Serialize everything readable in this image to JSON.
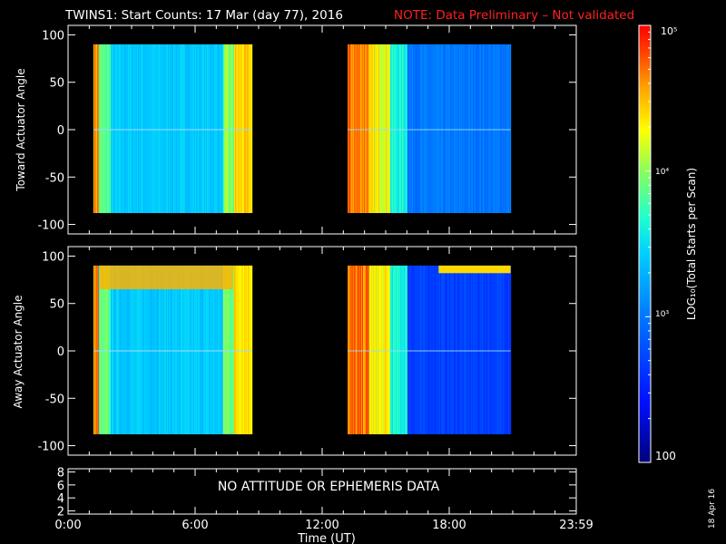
{
  "header": {
    "title": "TWINS1: Start Counts: 17 Mar (day  77), 2016",
    "note": "NOTE: Data Preliminary – Not validated"
  },
  "colors": {
    "background": "#000000",
    "foreground": "#ffffff",
    "note": "#ff2020"
  },
  "chart_data": [
    {
      "type": "heatmap",
      "panel": "toward",
      "ylabel": "Toward Actuator Angle",
      "ylim": [
        -110,
        110
      ],
      "yticks": [
        100,
        50,
        0,
        -50,
        -100
      ],
      "ytick_labels": [
        "100",
        "50",
        "0",
        "-50",
        "-100"
      ],
      "xlim_hours": [
        0,
        24
      ],
      "data_blocks_hours": [
        [
          1.2,
          8.7
        ],
        [
          13.2,
          20.9
        ]
      ],
      "angle_range": [
        -88,
        90
      ],
      "description_values": "log10 total starts per scan"
    },
    {
      "type": "heatmap",
      "panel": "away",
      "ylabel": "Away Actuator Angle",
      "ylim": [
        -110,
        110
      ],
      "yticks": [
        100,
        50,
        0,
        -50,
        -100
      ],
      "ytick_labels": [
        "100",
        "50",
        "0",
        "-50",
        "-100"
      ],
      "xlim_hours": [
        0,
        24
      ],
      "data_blocks_hours": [
        [
          1.2,
          8.7
        ],
        [
          13.2,
          20.9
        ]
      ],
      "angle_range": [
        -88,
        90
      ]
    },
    {
      "type": "line",
      "panel": "attitude",
      "ylim": [
        1.5,
        8.5
      ],
      "yticks": [
        8,
        6,
        4,
        2
      ],
      "ytick_labels": [
        "8",
        "6",
        "4",
        "2"
      ],
      "message": "NO ATTITUDE OR EPHEMERIS DATA"
    }
  ],
  "xaxis": {
    "ticks_hours": [
      0,
      6,
      12,
      18,
      24
    ],
    "tick_labels": [
      "0:00",
      "6:00",
      "12:00",
      "18:00",
      "23:59"
    ],
    "label": "Time (UT)"
  },
  "colorbar": {
    "range_log10": [
      2,
      5
    ],
    "tick_labels": [
      "10⁵",
      "10⁴",
      "10³",
      "100"
    ],
    "label": "LOG₁₀(Total Starts per Scan)"
  },
  "footer": {
    "date_stamp": "18 Apr 16"
  }
}
